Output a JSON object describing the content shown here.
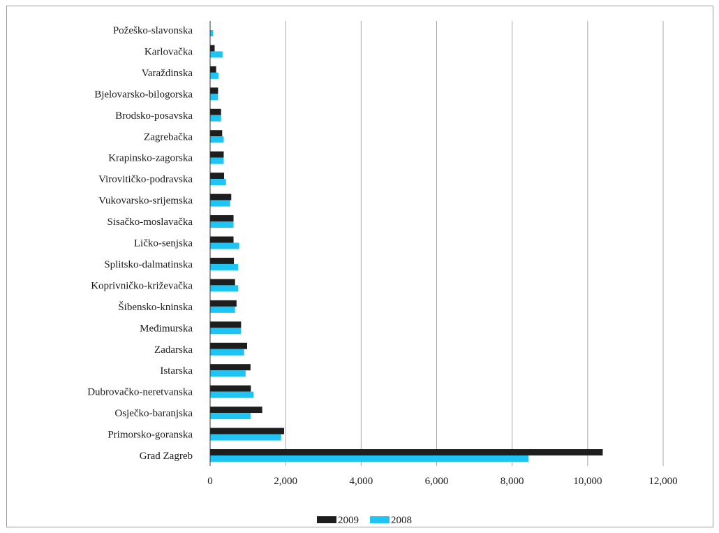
{
  "chart_data": {
    "type": "bar",
    "orientation": "horizontal",
    "title": "",
    "xlabel": "",
    "ylabel": "",
    "xlim": [
      0,
      12000
    ],
    "x_ticks": [
      0,
      2000,
      4000,
      6000,
      8000,
      10000,
      12000
    ],
    "x_tick_labels": [
      "0",
      "2,000",
      "4,000",
      "6,000",
      "8,000",
      "10,000",
      "12,000"
    ],
    "grid": "vertical",
    "legend_position": "bottom",
    "categories": [
      "Požeško-slavonska",
      "Karlovačka",
      "Varaždinska",
      "Bjelovarsko-bilogorska",
      "Brodsko-posavska",
      "Zagrebačka",
      "Krapinsko-zagorska",
      "Virovitičko-podravska",
      "Vukovarsko-srijemska",
      "Sisačko-moslavačka",
      "Ličko-senjska",
      "Splitsko-dalmatinska",
      "Koprivničko-križevačka",
      "Šibensko-kninska",
      "Međimurska",
      "Zadarska",
      "Istarska",
      "Dubrovačko-neretvanska",
      "Osječko-baranjska",
      "Primorsko-goranska",
      "Grad Zagreb"
    ],
    "series": [
      {
        "name": "2009",
        "color": "#1e1e1e",
        "values": [
          0,
          120,
          160,
          210,
          290,
          320,
          360,
          370,
          560,
          620,
          620,
          630,
          660,
          700,
          820,
          980,
          1070,
          1080,
          1380,
          1960,
          10400
        ]
      },
      {
        "name": "2008",
        "color": "#1ec4f4",
        "values": [
          80,
          330,
          220,
          210,
          290,
          360,
          360,
          420,
          530,
          620,
          770,
          740,
          740,
          660,
          820,
          900,
          940,
          1150,
          1070,
          1880,
          8430
        ]
      }
    ]
  },
  "colors": {
    "gridline": "#a8a8a8",
    "axis": "#333333",
    "frame": "#9a9a9a"
  }
}
